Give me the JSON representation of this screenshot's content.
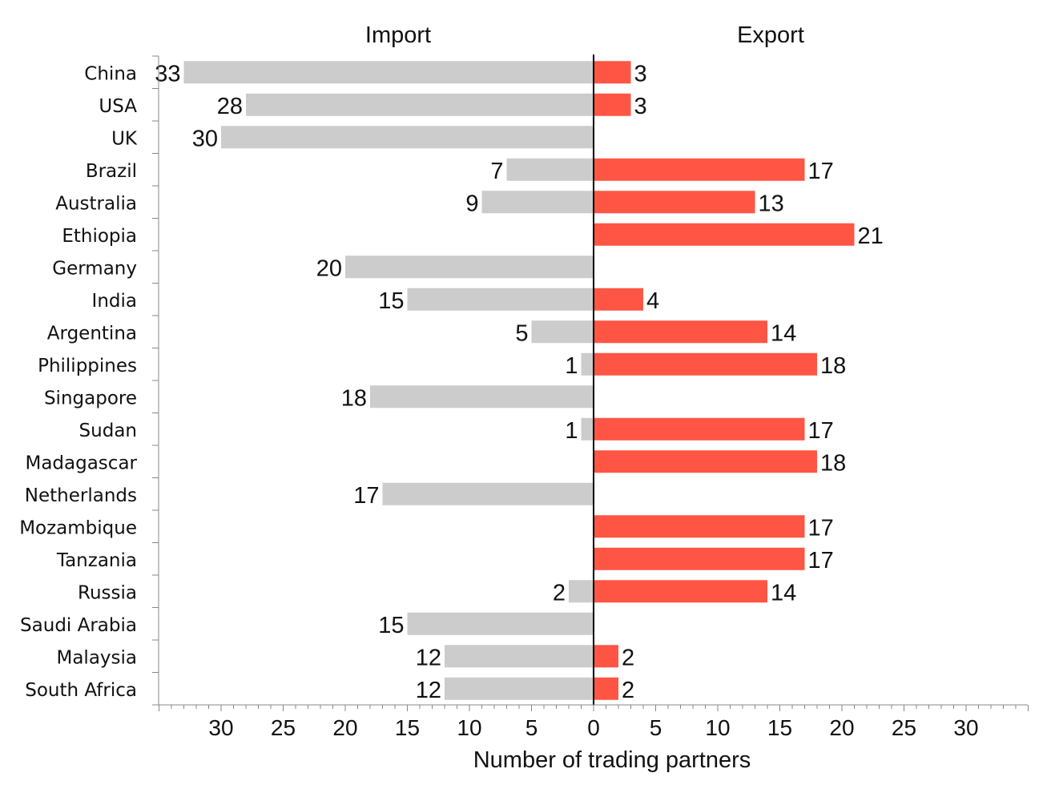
{
  "chart_data": {
    "type": "bar",
    "orientation": "horizontal-diverging",
    "headers": {
      "left": "Import",
      "right": "Export"
    },
    "xlabel": "Number of trading partners",
    "categories": [
      "China",
      "USA",
      "UK",
      "Brazil",
      "Australia",
      "Ethiopia",
      "Germany",
      "India",
      "Argentina",
      "Philippines",
      "Singapore",
      "Sudan",
      "Madagascar",
      "Netherlands",
      "Mozambique",
      "Tanzania",
      "Russia",
      "Saudi Arabia",
      "Malaysia",
      "South Africa"
    ],
    "series": [
      {
        "name": "Import",
        "values": [
          33,
          28,
          30,
          7,
          9,
          null,
          20,
          15,
          5,
          1,
          18,
          1,
          null,
          17,
          null,
          null,
          2,
          15,
          12,
          12
        ]
      },
      {
        "name": "Export",
        "values": [
          3,
          3,
          null,
          17,
          13,
          21,
          null,
          4,
          14,
          18,
          null,
          17,
          18,
          null,
          17,
          17,
          14,
          null,
          2,
          2
        ]
      }
    ],
    "xlim": [
      -35,
      35
    ],
    "xticks": [
      30,
      25,
      20,
      15,
      10,
      5,
      0,
      5,
      10,
      15,
      20,
      25,
      30
    ],
    "colors": {
      "import": "#cccccc",
      "export": "#ff5544",
      "axis": "#000000",
      "tick": "#888888"
    },
    "grid": false,
    "legend": "none"
  }
}
